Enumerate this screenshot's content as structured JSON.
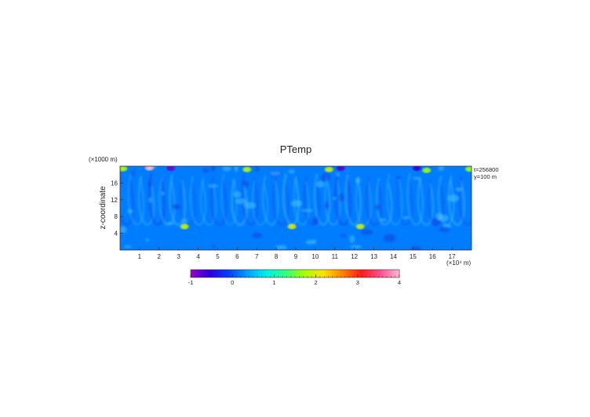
{
  "chart_data": {
    "type": "heatmap",
    "title": "PTemp",
    "xlabel": "",
    "x_unit_label": "(×10⁴ m)",
    "ylabel": "z-coordinate",
    "y_unit_label": "(×1000 m)",
    "xlim": [
      0,
      18
    ],
    "ylim": [
      0,
      20
    ],
    "x_ticks": [
      "1",
      "2",
      "3",
      "4",
      "5",
      "6",
      "7",
      "8",
      "9",
      "10",
      "11",
      "12",
      "13",
      "14",
      "15",
      "16",
      "17"
    ],
    "y_ticks": [
      "4",
      "8",
      "12",
      "16"
    ],
    "annotations": [
      "t=256800",
      "y=100 m"
    ],
    "colorbar": {
      "min": -1,
      "max": 4,
      "ticks": [
        "-1",
        "0",
        "1",
        "2",
        "3",
        "4"
      ],
      "colors": [
        "#9a00c8",
        "#2b00e0",
        "#0040ff",
        "#00a0ff",
        "#00f0e8",
        "#30ff80",
        "#a8ff00",
        "#ffe000",
        "#ff8000",
        "#ff1a1a",
        "#ff5090",
        "#ffb8d0"
      ]
    },
    "field": {
      "background_value": 0.2,
      "features": [
        {
          "x": 3.3,
          "z": 5.6,
          "value": 1.9
        },
        {
          "x": 8.8,
          "z": 5.6,
          "value": 2.0
        },
        {
          "x": 12.3,
          "z": 5.6,
          "value": 1.9
        },
        {
          "x": 6.5,
          "z": 19.2,
          "value": 1.8
        },
        {
          "x": 10.7,
          "z": 19.2,
          "value": 1.9
        },
        {
          "x": 15.7,
          "z": 19.0,
          "value": 1.7
        },
        {
          "x": 0.15,
          "z": 19.4,
          "value": 1.8
        },
        {
          "x": 17.9,
          "z": 19.3,
          "value": 1.7
        },
        {
          "x": 1.5,
          "z": 19.6,
          "value": 4.0
        },
        {
          "x": 2.6,
          "z": 19.5,
          "value": -0.8
        },
        {
          "x": 11.3,
          "z": 19.5,
          "value": -0.7
        },
        {
          "x": 15.2,
          "z": 19.5,
          "value": -0.6
        }
      ]
    }
  }
}
